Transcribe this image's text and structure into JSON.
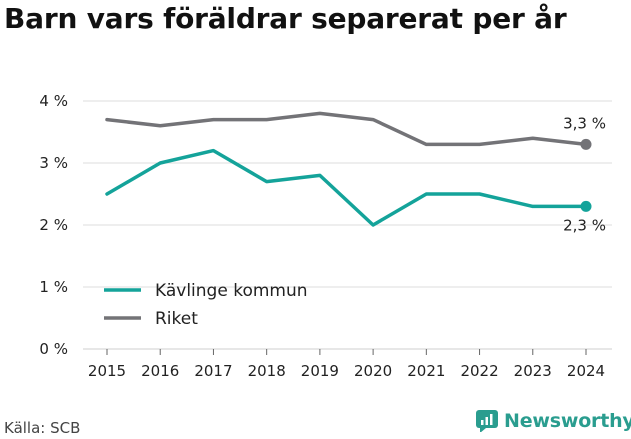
{
  "title": "Barn vars föräldrar separerat per år",
  "source": "Källa: SCB",
  "brand": {
    "name": "Newsworthy",
    "icon": "newsworthy-logo-icon",
    "color": "#2a9d8f"
  },
  "chart_data": {
    "type": "line",
    "title": "Barn vars föräldrar separerat per år",
    "x": [
      "2015",
      "2016",
      "2017",
      "2018",
      "2019",
      "2020",
      "2021",
      "2022",
      "2023",
      "2024"
    ],
    "ylim": [
      0,
      4
    ],
    "yticks": [
      0,
      1,
      2,
      3,
      4
    ],
    "ytick_labels": [
      "0 %",
      "1 %",
      "2 %",
      "3 %",
      "4 %"
    ],
    "grid": true,
    "legend_position": "bottom-left",
    "series": [
      {
        "name": "Kävlinge kommun",
        "color": "#14a39a",
        "values": [
          2.5,
          3.0,
          3.2,
          2.7,
          2.8,
          2.0,
          2.5,
          2.5,
          2.3,
          2.3
        ],
        "end_label": "2,3 %"
      },
      {
        "name": "Riket",
        "color": "#737377",
        "values": [
          3.7,
          3.6,
          3.7,
          3.7,
          3.8,
          3.7,
          3.3,
          3.3,
          3.4,
          3.3
        ],
        "end_label": "3,3 %"
      }
    ]
  }
}
